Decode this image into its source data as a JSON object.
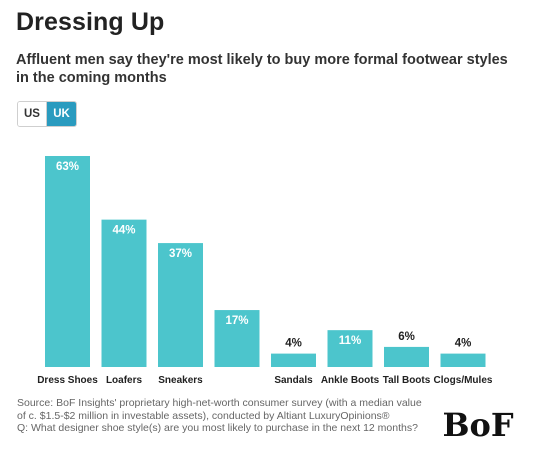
{
  "header": {
    "title": "Dressing Up",
    "subtitle": "Affluent men say they're most likely to buy more formal footwear styles in the coming months"
  },
  "toggle": {
    "options": [
      {
        "label": "US",
        "selected": false
      },
      {
        "label": "UK",
        "selected": true
      }
    ],
    "selected_color": "#2a9bbf"
  },
  "chart_data": {
    "type": "bar",
    "categories": [
      "Dress Shoes",
      "Loafers",
      "Sneakers",
      "",
      "Sandals",
      "Ankle Boots",
      "Tall Boots",
      "Clogs/Mules"
    ],
    "values": [
      63,
      44,
      37,
      17,
      4,
      11,
      6,
      4
    ],
    "value_labels": [
      "63%",
      "44%",
      "37%",
      "17%",
      "4%",
      "11%",
      "6%",
      "4%"
    ],
    "title": "",
    "xlabel": "",
    "ylabel": "",
    "ylim": [
      0,
      63
    ],
    "grid": false,
    "legend": "none",
    "bar_color": "#4cc5cc"
  },
  "footer": {
    "source": "Source: BoF Insights' proprietary high-net-worth consumer survey (with a median value of c. $1.5-$2 million in investable assets), conducted by Altiant LuxuryOpinions®",
    "question": "Q: What designer shoe style(s) are you most likely to purchase in the next 12 months?",
    "logo_text": "BoF"
  }
}
